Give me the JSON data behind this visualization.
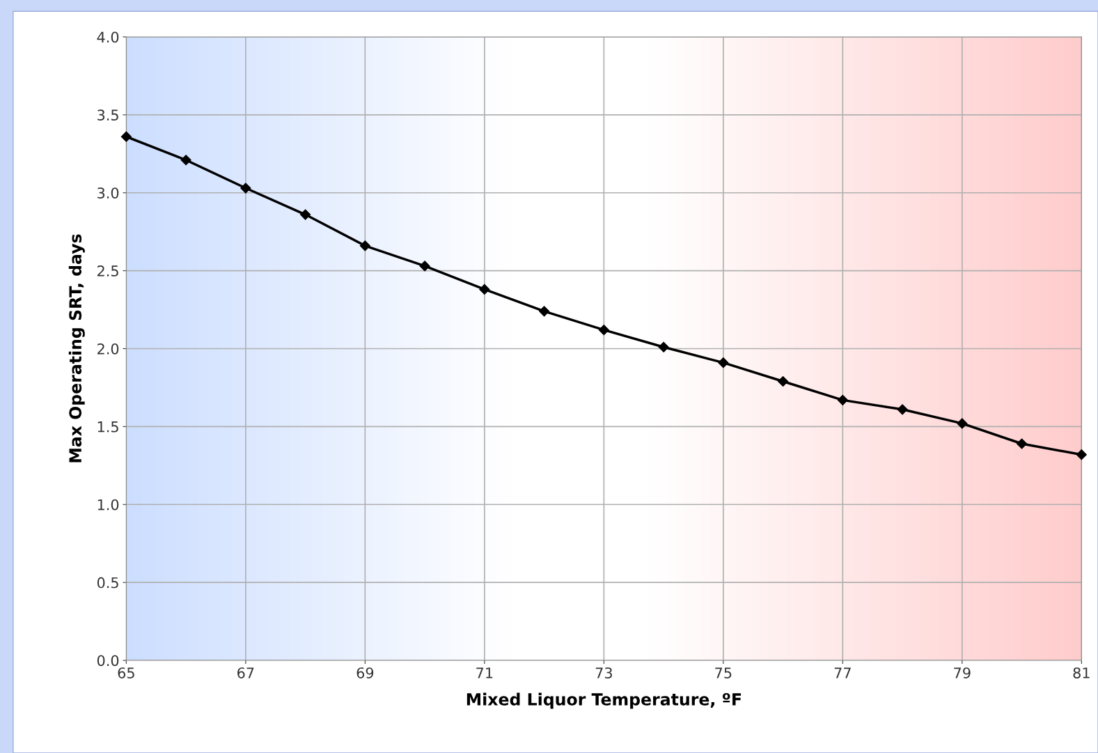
{
  "chart_data": {
    "type": "line",
    "xlabel": "Mixed Liquor Temperature, ºF",
    "ylabel": "Max Operating SRT, days",
    "x": [
      65,
      66,
      67,
      68,
      69,
      70,
      71,
      72,
      73,
      74,
      75,
      76,
      77,
      78,
      79,
      80,
      81
    ],
    "series": [
      {
        "color": "#000000",
        "values": [
          3.36,
          3.21,
          3.03,
          2.86,
          2.66,
          2.53,
          2.38,
          2.24,
          2.12,
          2.01,
          1.91,
          1.79,
          1.67,
          1.61,
          1.52,
          1.39,
          1.32
        ]
      }
    ],
    "xlim": [
      65,
      81
    ],
    "xticks": [
      65,
      67,
      69,
      71,
      73,
      75,
      77,
      79,
      81
    ],
    "ylim": [
      0,
      4
    ],
    "yticks": [
      {
        "value": 0,
        "label": "0.0"
      },
      {
        "value": 0.5,
        "label": "0.5"
      },
      {
        "value": 1,
        "label": "1.0"
      },
      {
        "value": 1.5,
        "label": "1.5"
      },
      {
        "value": 2,
        "label": "2.0"
      },
      {
        "value": 2.5,
        "label": "2.5"
      },
      {
        "value": 3,
        "label": "3.0"
      },
      {
        "value": 3.5,
        "label": "3.5"
      },
      {
        "value": 4,
        "label": "4.0"
      }
    ],
    "grid": true,
    "marker": "diamond",
    "line_style": "solid"
  }
}
